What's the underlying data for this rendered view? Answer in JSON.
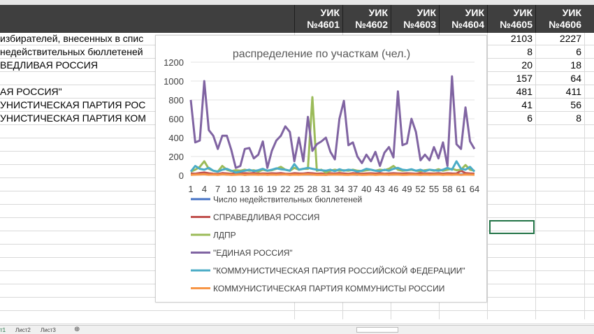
{
  "sheet": {
    "header": {
      "columns": [
        {
          "line1": "УИК",
          "line2": "№4601"
        },
        {
          "line1": "УИК",
          "line2": "№4602"
        },
        {
          "line1": "УИК",
          "line2": "№4603"
        },
        {
          "line1": "УИК",
          "line2": "№4604"
        },
        {
          "line1": "УИК",
          "line2": "№4605"
        },
        {
          "line1": "УИК",
          "line2": "№4606"
        }
      ]
    },
    "rows": [
      {
        "label": "избирателей, внесенных в спис",
        "v4605": "2103",
        "v4606": "2227"
      },
      {
        "label": "недействительных бюллетеней",
        "v4605": "8",
        "v4606": "6"
      },
      {
        "label": "ВЕДЛИВАЯ РОССИЯ",
        "v4605": "20",
        "v4606": "18"
      },
      {
        "label": "",
        "v4605": "157",
        "v4606": "64"
      },
      {
        "label": "АЯ РОССИЯ\"",
        "v4605": "481",
        "v4606": "411"
      },
      {
        "label": "УНИСТИЧЕСКАЯ ПАРТИЯ РОС",
        "v4605": "41",
        "v4606": "56"
      },
      {
        "label": "УНИСТИЧЕСКАЯ ПАРТИЯ КОМ",
        "v4605": "6",
        "v4606": "8"
      }
    ],
    "tabs": [
      "т1",
      "Лист2",
      "Лист3"
    ],
    "add_sheet": "⊕"
  },
  "chart_data": {
    "type": "line",
    "title": "распределение по участкам (чел.)",
    "xlabel": "",
    "ylabel": "",
    "ylim": [
      0,
      1200
    ],
    "yticks": [
      "0",
      "200",
      "400",
      "600",
      "800",
      "1000",
      "1200"
    ],
    "xtick_labels": [
      "1",
      "4",
      "7",
      "10",
      "13",
      "16",
      "19",
      "22",
      "25",
      "28",
      "31",
      "34",
      "37",
      "40",
      "43",
      "46",
      "49",
      "52",
      "55",
      "58",
      "61",
      "64"
    ],
    "x": [
      1,
      2,
      3,
      4,
      5,
      6,
      7,
      8,
      9,
      10,
      11,
      12,
      13,
      14,
      15,
      16,
      17,
      18,
      19,
      20,
      21,
      22,
      23,
      24,
      25,
      26,
      27,
      28,
      29,
      30,
      31,
      32,
      33,
      34,
      35,
      36,
      37,
      38,
      39,
      40,
      41,
      42,
      43,
      44,
      45,
      46,
      47,
      48,
      49,
      50,
      51,
      52,
      53,
      54,
      55,
      56,
      57,
      58,
      59,
      60,
      61,
      62,
      63,
      64
    ],
    "legend_position": "bottom",
    "series": [
      {
        "name": "Число недействительных бюллетеней",
        "color": "#4472c4",
        "values": [
          8,
          10,
          15,
          12,
          9,
          10,
          8,
          14,
          10,
          7,
          9,
          12,
          6,
          10,
          11,
          9,
          8,
          12,
          10,
          8,
          9,
          14,
          7,
          11,
          12,
          10,
          9,
          8,
          11,
          10,
          6,
          9,
          13,
          10,
          8,
          12,
          9,
          7,
          10,
          11,
          8,
          9,
          12,
          10,
          7,
          9,
          11,
          10,
          8,
          12,
          9,
          10,
          8,
          11,
          9,
          12,
          10,
          8,
          9,
          11,
          10,
          12,
          9,
          8
        ]
      },
      {
        "name": "СПРАВЕДЛИВАЯ РОССИЯ",
        "color": "#c0504d",
        "values": [
          20,
          18,
          25,
          30,
          22,
          18,
          15,
          24,
          20,
          17,
          22,
          19,
          23,
          20,
          25,
          18,
          21,
          19,
          22,
          20,
          24,
          18,
          16,
          23,
          20,
          19,
          25,
          22,
          18,
          20,
          15,
          22,
          19,
          24,
          20,
          17,
          23,
          21,
          18,
          20,
          22,
          19,
          24,
          18,
          20,
          23,
          21,
          19,
          22,
          20,
          18,
          24,
          20,
          21,
          19,
          23,
          18,
          22,
          20,
          19,
          50,
          24,
          20,
          18
        ]
      },
      {
        "name": "ЛДПР",
        "color": "#9bbb59",
        "values": [
          40,
          60,
          90,
          150,
          70,
          50,
          40,
          100,
          60,
          45,
          55,
          50,
          60,
          50,
          55,
          40,
          60,
          50,
          55,
          70,
          90,
          60,
          50,
          80,
          60,
          70,
          70,
          830,
          50,
          60,
          30,
          50,
          60,
          50,
          55,
          50,
          60,
          50,
          45,
          55,
          60,
          50,
          60,
          55,
          70,
          100,
          60,
          50,
          55,
          60,
          50,
          45,
          55,
          60,
          50,
          65,
          50,
          60,
          70,
          55,
          60,
          110,
          60,
          50
        ]
      },
      {
        "name": "\"ЕДИНАЯ РОССИЯ\"",
        "color": "#8064a2",
        "values": [
          800,
          350,
          370,
          1000,
          480,
          420,
          280,
          420,
          420,
          270,
          80,
          100,
          280,
          290,
          180,
          220,
          360,
          80,
          260,
          370,
          420,
          520,
          460,
          150,
          400,
          150,
          620,
          260,
          330,
          360,
          400,
          250,
          170,
          600,
          790,
          320,
          350,
          200,
          130,
          220,
          150,
          250,
          100,
          240,
          300,
          190,
          890,
          320,
          340,
          600,
          460,
          160,
          220,
          160,
          300,
          180,
          350,
          100,
          1050,
          330,
          280,
          720,
          360,
          280
        ]
      },
      {
        "name": "\"КОММУНИСТИЧЕСКАЯ ПАРТИЯ РОССИЙСКОЙ ФЕДЕРАЦИИ\"",
        "color": "#4bacc6",
        "values": [
          40,
          100,
          70,
          60,
          80,
          50,
          40,
          60,
          70,
          50,
          30,
          40,
          50,
          60,
          45,
          55,
          70,
          50,
          60,
          75,
          65,
          60,
          50,
          120,
          60,
          70,
          80,
          70,
          60,
          55,
          50,
          60,
          45,
          65,
          50,
          60,
          55,
          40,
          50,
          70,
          60,
          50,
          45,
          60,
          50,
          70,
          80,
          60,
          55,
          65,
          50,
          60,
          45,
          60,
          55,
          50,
          60,
          80,
          60,
          150,
          70,
          60,
          90,
          40
        ]
      },
      {
        "name": "КОММУНИСТИЧЕСКАЯ ПАРТИЯ КОММУНИСТЫ РОССИИ",
        "color": "#f79646",
        "values": [
          6,
          8,
          10,
          12,
          7,
          9,
          6,
          11,
          8,
          5,
          7,
          9,
          6,
          8,
          10,
          7,
          9,
          6,
          8,
          7,
          10,
          9,
          6,
          8,
          7,
          9,
          11,
          8,
          6,
          7,
          5,
          9,
          8,
          10,
          7,
          6,
          9,
          8,
          5,
          7,
          9,
          6,
          8,
          10,
          7,
          9,
          8,
          6,
          7,
          9,
          8,
          6,
          10,
          7,
          8,
          9,
          6,
          8,
          7,
          9,
          6,
          10,
          8,
          7
        ]
      }
    ]
  }
}
